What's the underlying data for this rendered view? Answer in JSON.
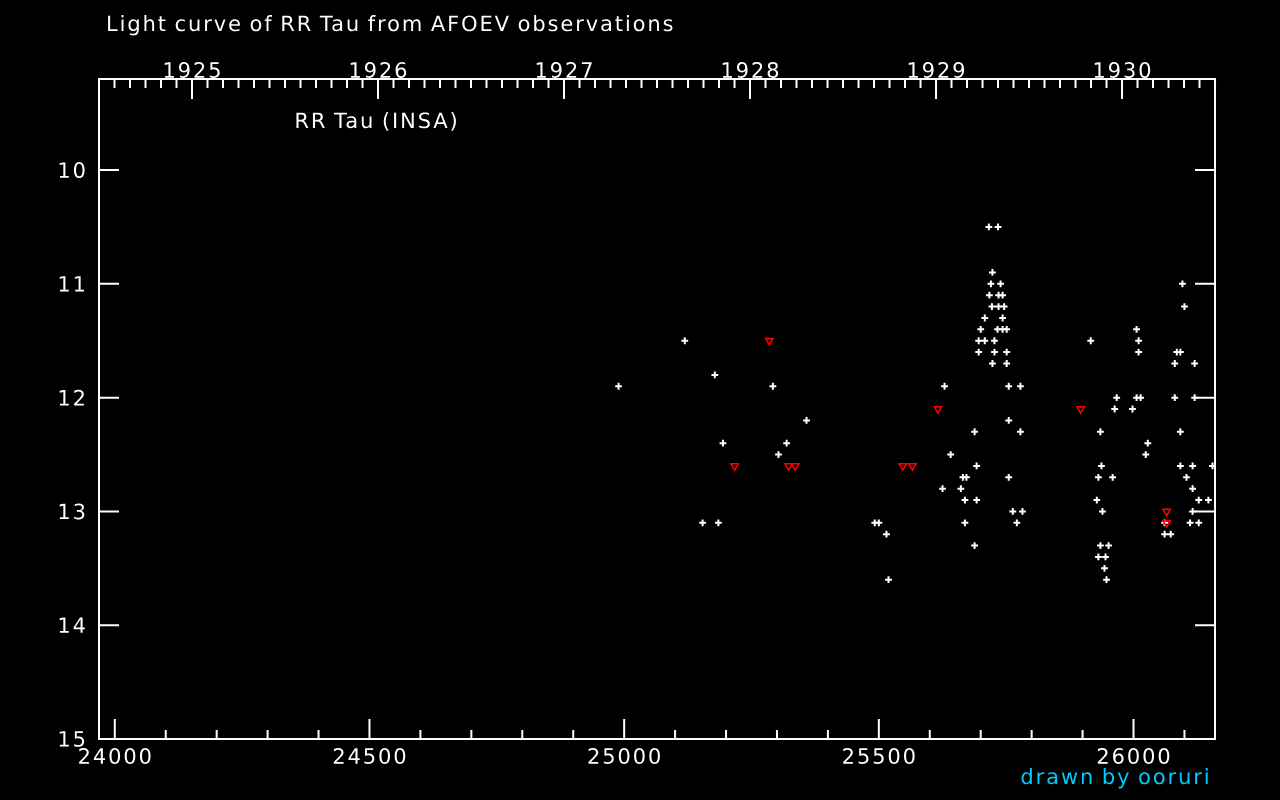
{
  "chart_data": {
    "type": "scatter",
    "title": "Light curve of RR Tau from AFOEV observations",
    "annotations": [
      "RR Tau (INSA)",
      "drawn by ooruri"
    ],
    "xlim": [
      23969,
      26160
    ],
    "xticks": [
      24000,
      24500,
      25000,
      25500,
      26000
    ],
    "x2lim": [
      1924.5,
      1930.5
    ],
    "x2ticks": [
      1925,
      1926,
      1927,
      1928,
      1929,
      1930
    ],
    "ylim": [
      15,
      9.2
    ],
    "yticks": [
      10,
      11,
      12,
      13,
      14,
      15
    ],
    "series": [
      {
        "color": "#ffffff",
        "marker": "cross",
        "x": [
          24989,
          25119,
          25178,
          25292,
          25358,
          25194,
          25319,
          25303,
          25154,
          25185,
          25492,
          25500,
          25515,
          25519,
          25716,
          25734,
          25723,
          25720,
          25739,
          26096,
          25717,
          25735,
          25743,
          25722,
          25735,
          25746,
          26100,
          25708,
          25743,
          25700,
          25733,
          25743,
          25751,
          26006,
          25696,
          25708,
          25727,
          25916,
          26010,
          25696,
          25727,
          25751,
          26010,
          26085,
          26092,
          25723,
          25751,
          26081,
          26120,
          25629,
          25755,
          25778,
          25967,
          26006,
          26014,
          26081,
          26120,
          25963,
          25998,
          25755,
          25688,
          25778,
          25935,
          26092,
          26028,
          25641,
          26024,
          25692,
          25937,
          26092,
          26116,
          26155,
          25665,
          25672,
          25755,
          25931,
          25959,
          26104,
          25625,
          25661,
          26116,
          25669,
          25692,
          25928,
          26128,
          26147,
          25763,
          25782,
          25939,
          26116,
          25669,
          25771,
          26061,
          26111,
          26128,
          26061,
          26073,
          25688,
          25935,
          25951,
          25931,
          25945,
          25943,
          25947
        ],
        "values": [
          11.9,
          11.5,
          11.8,
          11.9,
          12.2,
          12.4,
          12.4,
          12.5,
          13.1,
          13.1,
          13.1,
          13.1,
          13.2,
          13.6,
          10.5,
          10.5,
          10.9,
          11.0,
          11.0,
          11.0,
          11.1,
          11.1,
          11.1,
          11.2,
          11.2,
          11.2,
          11.2,
          11.3,
          11.3,
          11.4,
          11.4,
          11.4,
          11.4,
          11.4,
          11.5,
          11.5,
          11.5,
          11.5,
          11.5,
          11.6,
          11.6,
          11.6,
          11.6,
          11.6,
          11.6,
          11.7,
          11.7,
          11.7,
          11.7,
          11.9,
          11.9,
          11.9,
          12.0,
          12.0,
          12.0,
          12.0,
          12.0,
          12.1,
          12.1,
          12.2,
          12.3,
          12.3,
          12.3,
          12.3,
          12.4,
          12.5,
          12.5,
          12.6,
          12.6,
          12.6,
          12.6,
          12.6,
          12.7,
          12.7,
          12.7,
          12.7,
          12.7,
          12.7,
          12.8,
          12.8,
          12.8,
          12.9,
          12.9,
          12.9,
          12.9,
          12.9,
          13.0,
          13.0,
          13.0,
          13.0,
          13.1,
          13.1,
          13.1,
          13.1,
          13.1,
          13.2,
          13.2,
          13.3,
          13.3,
          13.3,
          13.4,
          13.4,
          13.5,
          13.6
        ]
      },
      {
        "color": "#ff0000",
        "marker": "triangle",
        "x": [
          25217,
          25285,
          25323,
          25336,
          25547,
          25566,
          25616,
          25896,
          26065,
          26065
        ],
        "values": [
          12.6,
          11.5,
          12.6,
          12.6,
          12.6,
          12.6,
          12.1,
          12.1,
          13.0,
          13.1
        ]
      }
    ]
  }
}
